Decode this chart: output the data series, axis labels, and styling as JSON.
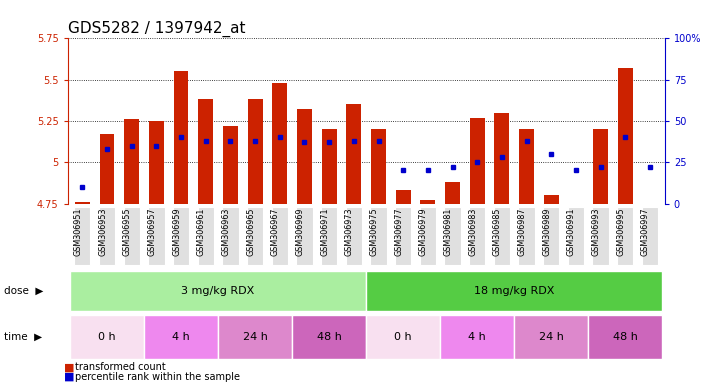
{
  "title": "GDS5282 / 1397942_at",
  "samples": [
    "GSM306951",
    "GSM306953",
    "GSM306955",
    "GSM306957",
    "GSM306959",
    "GSM306961",
    "GSM306963",
    "GSM306965",
    "GSM306967",
    "GSM306969",
    "GSM306971",
    "GSM306973",
    "GSM306975",
    "GSM306977",
    "GSM306979",
    "GSM306981",
    "GSM306983",
    "GSM306985",
    "GSM306987",
    "GSM306989",
    "GSM306991",
    "GSM306993",
    "GSM306995",
    "GSM306997"
  ],
  "transformed_count": [
    4.76,
    5.17,
    5.26,
    5.25,
    5.55,
    5.38,
    5.22,
    5.38,
    5.48,
    5.32,
    5.2,
    5.35,
    5.2,
    4.83,
    4.77,
    4.88,
    5.27,
    5.3,
    5.2,
    4.8,
    4.75,
    5.2,
    5.57,
    4.75
  ],
  "percentile_rank": [
    10,
    33,
    35,
    35,
    40,
    38,
    38,
    38,
    40,
    37,
    37,
    38,
    38,
    20,
    20,
    22,
    25,
    28,
    38,
    30,
    20,
    22,
    40,
    22
  ],
  "ylim_left": [
    4.75,
    5.75
  ],
  "ylim_right": [
    0,
    100
  ],
  "yticks_left": [
    4.75,
    5.0,
    5.25,
    5.5,
    5.75
  ],
  "ytick_labels_left": [
    "4.75",
    "5",
    "5.25",
    "5.5",
    "5.75"
  ],
  "yticks_right": [
    0,
    25,
    50,
    75,
    100
  ],
  "ytick_labels_right": [
    "0",
    "25",
    "50",
    "75",
    "100%"
  ],
  "bar_color": "#cc2200",
  "dot_color": "#0000cc",
  "baseline": 4.75,
  "dose_groups": [
    {
      "label": "3 mg/kg RDX",
      "start": 0,
      "end": 12,
      "color": "#aaeea0"
    },
    {
      "label": "18 mg/kg RDX",
      "start": 12,
      "end": 24,
      "color": "#55cc44"
    }
  ],
  "time_groups": [
    {
      "label": "0 h",
      "start": 0,
      "end": 3,
      "color": "#f8e0f0"
    },
    {
      "label": "4 h",
      "start": 3,
      "end": 6,
      "color": "#ee88ee"
    },
    {
      "label": "24 h",
      "start": 6,
      "end": 9,
      "color": "#dd88cc"
    },
    {
      "label": "48 h",
      "start": 9,
      "end": 12,
      "color": "#cc66bb"
    },
    {
      "label": "0 h",
      "start": 12,
      "end": 15,
      "color": "#f8e0f0"
    },
    {
      "label": "4 h",
      "start": 15,
      "end": 18,
      "color": "#ee88ee"
    },
    {
      "label": "24 h",
      "start": 18,
      "end": 21,
      "color": "#dd88cc"
    },
    {
      "label": "48 h",
      "start": 21,
      "end": 24,
      "color": "#cc66bb"
    }
  ],
  "legend_items": [
    {
      "label": "transformed count",
      "color": "#cc2200"
    },
    {
      "label": "percentile rank within the sample",
      "color": "#0000cc"
    }
  ],
  "grid_color": "#000000",
  "background_color": "#ffffff",
  "plot_bg_color": "#ffffff",
  "xticklabel_bg": "#e0e0e0",
  "bar_width": 0.6,
  "title_fontsize": 11,
  "tick_fontsize": 7,
  "label_fontsize": 7.5
}
